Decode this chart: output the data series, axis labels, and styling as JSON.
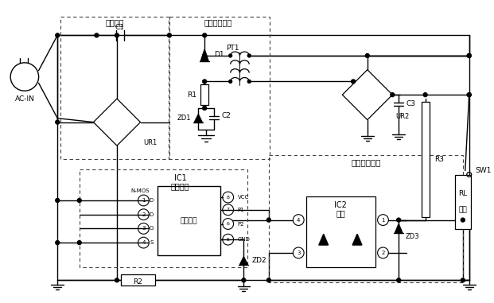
{
  "bg_color": "#ffffff",
  "labels": {
    "ac_in": "AC-IN",
    "c1": "C1",
    "c2": "C2",
    "c3": "C3",
    "r1": "R1",
    "r2": "R2",
    "r3": "R3",
    "d1": "D1",
    "zd1": "ZD1",
    "zd2": "ZD2",
    "zd3": "ZD3",
    "ur1": "UR1",
    "ur2": "UR2",
    "pt1": "PT1",
    "ic1": "IC1",
    "ic2": "IC2",
    "sw1": "SW1",
    "rl": "RL",
    "nmos": "N-MOS",
    "module1": "阻抗模块",
    "module2": "开关控制模块",
    "module3": "光电隔离模块",
    "ic1_label": "主控芯片",
    "ic2_label": "光耦",
    "processor": "微处理器",
    "rl_label": "负载"
  },
  "fig_width": 6.21,
  "fig_height": 3.81
}
